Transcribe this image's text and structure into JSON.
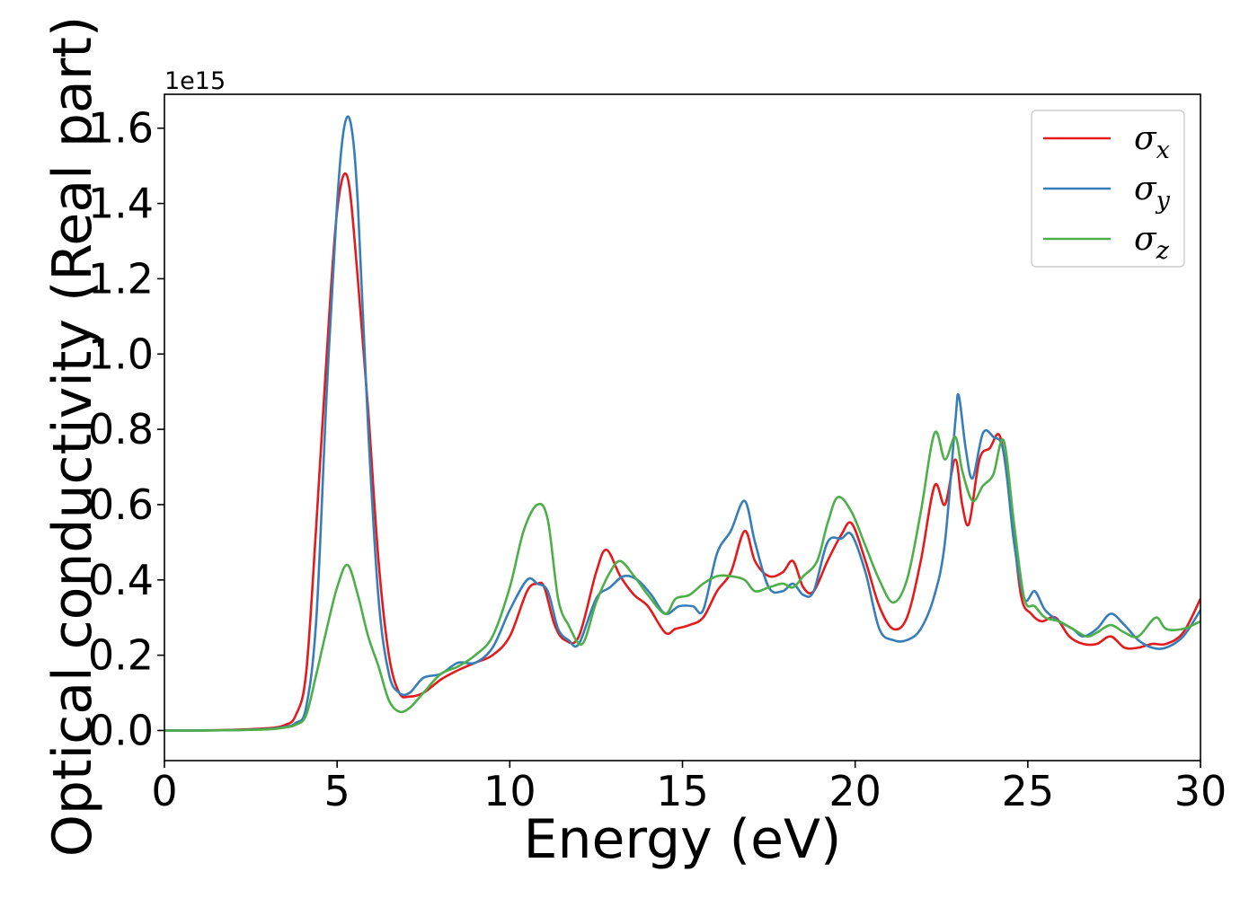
{
  "chart_data": {
    "type": "line",
    "xlabel": "Energy (eV)",
    "ylabel": "Optical conductivity (Real part)",
    "y_offset_label": "1e15",
    "xlim": [
      0,
      30
    ],
    "ylim": [
      -0.08,
      1.69
    ],
    "x_ticks": [
      "0",
      "5",
      "10",
      "15",
      "20",
      "25",
      "30"
    ],
    "y_ticks": [
      "0.0",
      "0.2",
      "0.4",
      "0.6",
      "0.8",
      "1.0",
      "1.2",
      "1.4",
      "1.6"
    ],
    "grid": false,
    "legend_position": "top-right",
    "series": [
      {
        "name": "σ_x",
        "legend_base": "σ",
        "legend_sub": "x",
        "color": "#e41a1c",
        "x": [
          0,
          1,
          2,
          3,
          3.5,
          3.8,
          4.1,
          4.4,
          4.7,
          5.0,
          5.3,
          5.6,
          5.9,
          6.2,
          6.5,
          6.8,
          7.1,
          7.5,
          8.0,
          8.5,
          9.0,
          9.5,
          10.0,
          10.5,
          10.8,
          11.0,
          11.3,
          11.6,
          12.0,
          12.5,
          12.8,
          13.2,
          13.6,
          14.0,
          14.5,
          14.8,
          15.2,
          15.6,
          16.0,
          16.4,
          16.8,
          17.1,
          17.5,
          17.9,
          18.2,
          18.5,
          18.8,
          19.2,
          19.6,
          19.9,
          20.3,
          20.7,
          21.1,
          21.5,
          21.9,
          22.3,
          22.6,
          22.9,
          23.1,
          23.3,
          23.6,
          23.9,
          24.2,
          24.5,
          24.8,
          25.1,
          25.4,
          25.8,
          26.2,
          26.6,
          27.0,
          27.4,
          27.8,
          28.2,
          28.6,
          29.0,
          29.5,
          30.0
        ],
        "y": [
          0.0,
          0.0,
          0.002,
          0.006,
          0.015,
          0.04,
          0.15,
          0.55,
          1.0,
          1.38,
          1.47,
          1.2,
          0.85,
          0.45,
          0.2,
          0.1,
          0.09,
          0.1,
          0.135,
          0.16,
          0.18,
          0.2,
          0.25,
          0.37,
          0.39,
          0.38,
          0.28,
          0.24,
          0.25,
          0.42,
          0.48,
          0.41,
          0.36,
          0.33,
          0.26,
          0.27,
          0.28,
          0.3,
          0.37,
          0.42,
          0.53,
          0.45,
          0.41,
          0.42,
          0.45,
          0.38,
          0.37,
          0.45,
          0.52,
          0.55,
          0.45,
          0.33,
          0.27,
          0.3,
          0.45,
          0.65,
          0.6,
          0.72,
          0.6,
          0.55,
          0.72,
          0.75,
          0.78,
          0.6,
          0.36,
          0.31,
          0.29,
          0.3,
          0.25,
          0.23,
          0.23,
          0.25,
          0.22,
          0.22,
          0.23,
          0.23,
          0.26,
          0.35
        ]
      },
      {
        "name": "σ_y",
        "legend_base": "σ",
        "legend_sub": "y",
        "color": "#377eb8",
        "x": [
          0,
          1,
          2,
          3,
          3.5,
          3.8,
          4.1,
          4.4,
          4.7,
          5.0,
          5.2,
          5.4,
          5.6,
          5.9,
          6.2,
          6.5,
          6.8,
          7.1,
          7.5,
          8.0,
          8.5,
          9.0,
          9.5,
          10.0,
          10.5,
          10.8,
          11.1,
          11.4,
          11.7,
          12.0,
          12.5,
          12.9,
          13.3,
          13.7,
          14.1,
          14.5,
          14.9,
          15.3,
          15.6,
          16.0,
          16.4,
          16.8,
          17.1,
          17.5,
          17.9,
          18.2,
          18.5,
          18.8,
          19.2,
          19.6,
          19.9,
          20.3,
          20.7,
          21.1,
          21.5,
          21.9,
          22.3,
          22.6,
          22.9,
          23.0,
          23.2,
          23.4,
          23.7,
          24.0,
          24.3,
          24.6,
          24.9,
          25.2,
          25.5,
          25.9,
          26.3,
          26.6,
          27.0,
          27.4,
          27.8,
          28.2,
          28.6,
          29.0,
          29.5,
          30.0
        ],
        "y": [
          0.0,
          0.0,
          0.001,
          0.004,
          0.01,
          0.02,
          0.06,
          0.3,
          0.9,
          1.4,
          1.6,
          1.61,
          1.4,
          0.8,
          0.35,
          0.15,
          0.1,
          0.1,
          0.14,
          0.15,
          0.18,
          0.18,
          0.22,
          0.32,
          0.4,
          0.39,
          0.37,
          0.27,
          0.24,
          0.23,
          0.35,
          0.38,
          0.41,
          0.4,
          0.36,
          0.31,
          0.33,
          0.33,
          0.32,
          0.47,
          0.53,
          0.61,
          0.5,
          0.38,
          0.37,
          0.39,
          0.36,
          0.37,
          0.5,
          0.51,
          0.52,
          0.42,
          0.27,
          0.24,
          0.24,
          0.27,
          0.36,
          0.5,
          0.82,
          0.89,
          0.75,
          0.67,
          0.79,
          0.78,
          0.74,
          0.5,
          0.35,
          0.37,
          0.32,
          0.29,
          0.27,
          0.25,
          0.27,
          0.31,
          0.28,
          0.24,
          0.22,
          0.22,
          0.25,
          0.32
        ]
      },
      {
        "name": "σ_z",
        "legend_base": "σ",
        "legend_sub": "z",
        "color": "#4daf4a",
        "x": [
          0,
          1,
          2,
          3,
          3.5,
          3.8,
          4.1,
          4.4,
          4.7,
          5.0,
          5.3,
          5.6,
          5.9,
          6.2,
          6.5,
          6.8,
          7.1,
          7.5,
          8.0,
          8.5,
          9.0,
          9.5,
          10.0,
          10.4,
          10.8,
          11.1,
          11.4,
          11.7,
          12.1,
          12.5,
          12.9,
          13.2,
          13.6,
          14.0,
          14.5,
          14.8,
          15.2,
          15.6,
          16.0,
          16.4,
          16.8,
          17.1,
          17.5,
          17.9,
          18.2,
          18.5,
          18.9,
          19.2,
          19.5,
          19.9,
          20.3,
          20.7,
          21.1,
          21.5,
          21.9,
          22.3,
          22.6,
          22.9,
          23.1,
          23.4,
          23.7,
          24.0,
          24.3,
          24.6,
          24.9,
          25.2,
          25.5,
          25.9,
          26.3,
          26.7,
          27.0,
          27.4,
          27.8,
          28.2,
          28.7,
          29.0,
          29.5,
          30.0
        ],
        "y": [
          0.0,
          0.0,
          0.001,
          0.003,
          0.008,
          0.015,
          0.04,
          0.15,
          0.27,
          0.38,
          0.44,
          0.36,
          0.25,
          0.17,
          0.08,
          0.05,
          0.06,
          0.1,
          0.15,
          0.17,
          0.2,
          0.25,
          0.38,
          0.53,
          0.6,
          0.56,
          0.35,
          0.28,
          0.23,
          0.34,
          0.42,
          0.45,
          0.41,
          0.36,
          0.31,
          0.35,
          0.36,
          0.39,
          0.41,
          0.41,
          0.4,
          0.37,
          0.38,
          0.39,
          0.38,
          0.41,
          0.45,
          0.55,
          0.62,
          0.58,
          0.49,
          0.4,
          0.34,
          0.4,
          0.58,
          0.79,
          0.72,
          0.78,
          0.69,
          0.61,
          0.65,
          0.68,
          0.77,
          0.55,
          0.35,
          0.33,
          0.3,
          0.29,
          0.27,
          0.25,
          0.26,
          0.28,
          0.26,
          0.25,
          0.3,
          0.27,
          0.27,
          0.29
        ]
      }
    ]
  }
}
